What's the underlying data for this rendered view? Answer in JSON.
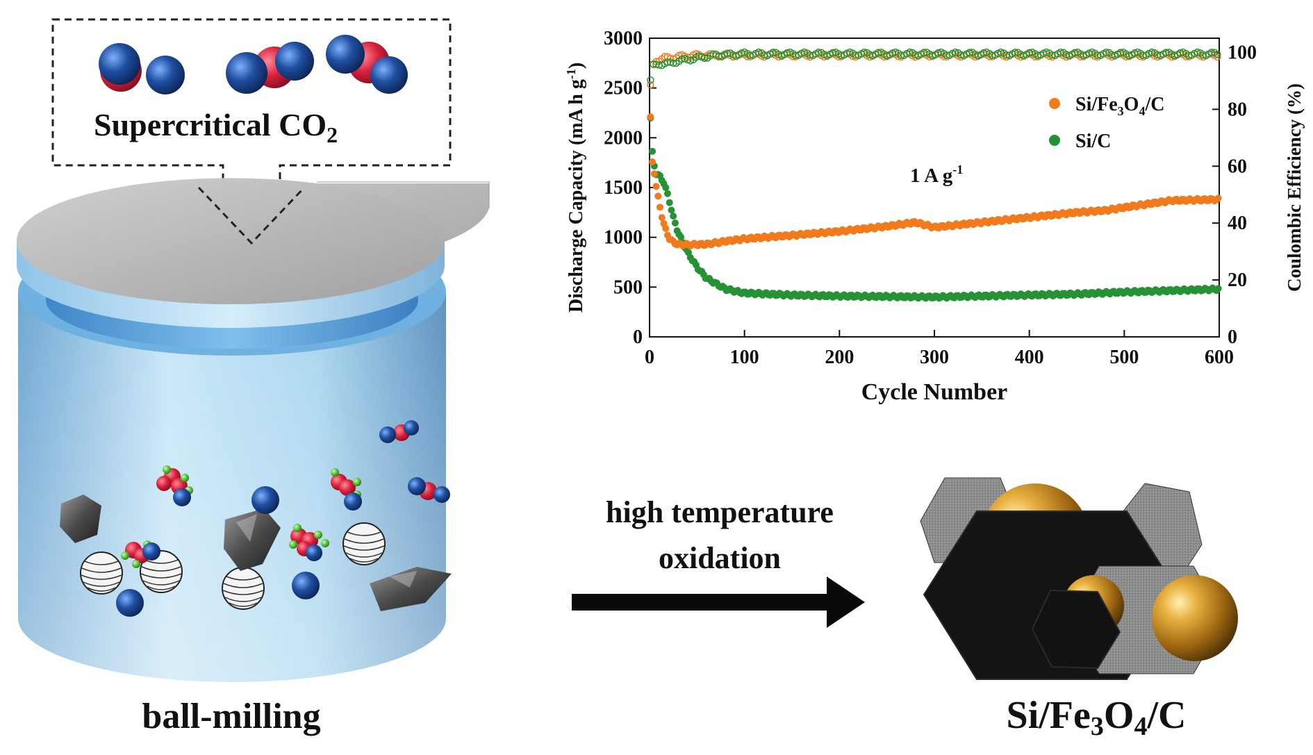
{
  "co2_box": {
    "label": "Supercritical CO",
    "label_sub": "2"
  },
  "ball_milling": {
    "caption": "ball-milling"
  },
  "arrow": {
    "line1": "high temperature",
    "line2": "oxidation"
  },
  "product": {
    "caption": {
      "p1": "Si/Fe",
      "s1": "3",
      "p2": "O",
      "s2": "4",
      "p3": "/C"
    }
  },
  "colors": {
    "oxygen": "#d8203a",
    "carbon": "#1f4fa0",
    "hydrogen": "#5cc23a",
    "jar_body": "#a9d6ef",
    "lid": "#b3b3b3",
    "gold": "#c58a1c",
    "hexagon_dark": "#161616",
    "hexagon_gray": "#8e8e8e",
    "series_si_fe3o4_c": "#f07a1c",
    "series_si_c": "#279235"
  },
  "chart_data": {
    "type": "scatter",
    "title": "",
    "annotation": "1 A g",
    "annotation_sup": "-1",
    "xlabel": "Cycle Number",
    "ylabel_left": "Discharge Capacity (mA h g",
    "ylabel_left_sup": "-1",
    "ylabel_left_close": ")",
    "ylabel_right": "Coulombic Efficiency (%)",
    "xlim": [
      0,
      600
    ],
    "ylim_left": [
      0,
      3000
    ],
    "ylim_right": [
      0,
      105
    ],
    "x_ticks": [
      "0",
      "100",
      "200",
      "300",
      "400",
      "500",
      "600"
    ],
    "y_left_ticks": [
      "0",
      "500",
      "1000",
      "1500",
      "2000",
      "2500",
      "3000"
    ],
    "y_right_ticks": [
      "0",
      "20",
      "40",
      "60",
      "80",
      "100"
    ],
    "legend_position": "top-right",
    "series": [
      {
        "name_parts": [
          "Si/Fe",
          "3",
          "O",
          "4",
          "/C"
        ],
        "axis": "left",
        "capacity": {
          "x": [
            1,
            3,
            5,
            8,
            12,
            16,
            20,
            25,
            30,
            40,
            60,
            80,
            100,
            150,
            200,
            250,
            280,
            300,
            320,
            350,
            400,
            450,
            480,
            500,
            550,
            600
          ],
          "y": [
            2200,
            1750,
            1650,
            1450,
            1250,
            1100,
            1000,
            950,
            930,
            925,
            930,
            960,
            985,
            1020,
            1060,
            1110,
            1150,
            1100,
            1120,
            1150,
            1200,
            1250,
            1270,
            1300,
            1370,
            1380
          ]
        },
        "efficiency": {
          "x": [
            1,
            3,
            6,
            10,
            15,
            20,
            30,
            50,
            100,
            200,
            300,
            400,
            500,
            600
          ],
          "y": [
            88,
            95,
            97,
            97.5,
            98,
            98,
            98.5,
            99,
            99,
            99,
            99,
            99,
            99,
            99
          ]
        }
      },
      {
        "name_parts": [
          "Si/C"
        ],
        "axis": "left",
        "capacity": {
          "x": [
            1,
            3,
            6,
            10,
            15,
            20,
            25,
            30,
            40,
            50,
            60,
            80,
            100,
            150,
            200,
            250,
            300,
            350,
            400,
            450,
            500,
            550,
            600
          ],
          "y": [
            2200,
            1850,
            1650,
            1620,
            1550,
            1400,
            1200,
            1050,
            850,
            700,
            590,
            480,
            440,
            420,
            410,
            405,
            400,
            410,
            420,
            430,
            450,
            465,
            480
          ]
        },
        "efficiency": {
          "x": [
            1,
            3,
            6,
            10,
            20,
            30,
            50,
            70,
            100,
            200,
            300,
            400,
            500,
            600
          ],
          "y": [
            90,
            95,
            95.5,
            96,
            96,
            97,
            98,
            99,
            99.5,
            99.5,
            99.5,
            99.5,
            99.5,
            99.5
          ]
        }
      }
    ]
  }
}
